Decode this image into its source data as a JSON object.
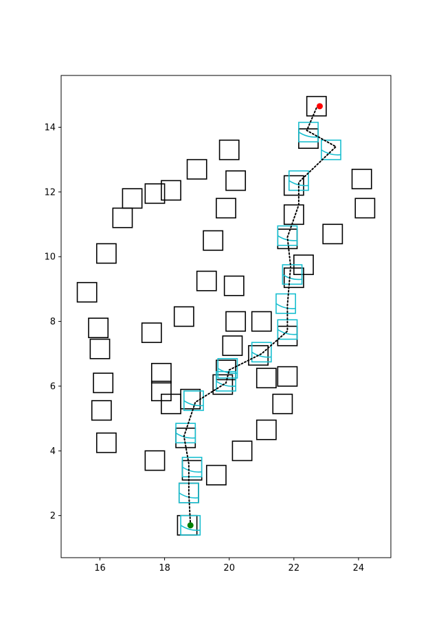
{
  "chart_data": {
    "type": "scatter",
    "title": "",
    "xlabel": "",
    "ylabel": "",
    "xlim": [
      14.8,
      25.0
    ],
    "ylim": [
      0.7,
      15.6
    ],
    "xticks": [
      16,
      18,
      20,
      22,
      24
    ],
    "yticks": [
      2,
      4,
      6,
      8,
      10,
      12,
      14
    ],
    "xtick_labels": [
      "16",
      "18",
      "20",
      "22",
      "24"
    ],
    "ytick_labels": [
      "2",
      "4",
      "6",
      "8",
      "10",
      "12",
      "14"
    ],
    "grid": false,
    "obstacle_half_size": 0.3,
    "obstacle_color": "#000000",
    "path_box_color": "#17becf",
    "path_line_color": "#000000",
    "start_color": "#008000",
    "goal_color": "#ff0000",
    "obstacles": [
      [
        22.7,
        14.65
      ],
      [
        22.45,
        13.65
      ],
      [
        20.0,
        13.3
      ],
      [
        19.0,
        12.7
      ],
      [
        20.2,
        12.35
      ],
      [
        24.1,
        12.4
      ],
      [
        22.0,
        12.2
      ],
      [
        18.2,
        12.05
      ],
      [
        17.7,
        11.95
      ],
      [
        17.0,
        11.8
      ],
      [
        24.2,
        11.5
      ],
      [
        19.9,
        11.5
      ],
      [
        22.0,
        11.3
      ],
      [
        16.7,
        11.2
      ],
      [
        23.2,
        10.7
      ],
      [
        21.8,
        10.55
      ],
      [
        19.5,
        10.5
      ],
      [
        16.2,
        10.1
      ],
      [
        22.3,
        9.75
      ],
      [
        22.0,
        9.35
      ],
      [
        19.3,
        9.25
      ],
      [
        20.15,
        9.1
      ],
      [
        15.6,
        8.9
      ],
      [
        18.6,
        8.15
      ],
      [
        20.2,
        8.0
      ],
      [
        21.0,
        8.0
      ],
      [
        15.95,
        7.8
      ],
      [
        17.6,
        7.65
      ],
      [
        21.8,
        7.55
      ],
      [
        16.0,
        7.15
      ],
      [
        20.1,
        7.25
      ],
      [
        20.9,
        6.95
      ],
      [
        19.9,
        6.5
      ],
      [
        17.9,
        6.4
      ],
      [
        21.15,
        6.25
      ],
      [
        21.8,
        6.3
      ],
      [
        16.1,
        6.1
      ],
      [
        19.8,
        6.05
      ],
      [
        17.9,
        5.85
      ],
      [
        21.65,
        5.45
      ],
      [
        18.2,
        5.45
      ],
      [
        18.8,
        5.6
      ],
      [
        16.05,
        5.25
      ],
      [
        21.15,
        4.65
      ],
      [
        18.65,
        4.4
      ],
      [
        16.2,
        4.25
      ],
      [
        20.4,
        4.0
      ],
      [
        17.7,
        3.7
      ],
      [
        18.85,
        3.4
      ],
      [
        19.6,
        3.25
      ],
      [
        18.75,
        2.7
      ],
      [
        18.7,
        1.7
      ]
    ],
    "path_boxes": [
      [
        18.8,
        1.7
      ],
      [
        18.75,
        2.7
      ],
      [
        18.85,
        3.5
      ],
      [
        18.65,
        4.55
      ],
      [
        18.9,
        5.55
      ],
      [
        19.9,
        6.15
      ],
      [
        19.95,
        6.55
      ],
      [
        21.0,
        7.05
      ],
      [
        21.8,
        7.75
      ],
      [
        21.75,
        8.55
      ],
      [
        21.95,
        9.45
      ],
      [
        21.8,
        10.65
      ],
      [
        22.15,
        12.35
      ],
      [
        23.15,
        13.3
      ],
      [
        22.45,
        13.85
      ]
    ],
    "path": [
      [
        18.8,
        1.7
      ],
      [
        18.75,
        2.7
      ],
      [
        18.75,
        3.6
      ],
      [
        18.6,
        4.45
      ],
      [
        18.95,
        5.5
      ],
      [
        19.9,
        6.1
      ],
      [
        20.0,
        6.5
      ],
      [
        21.0,
        7.0
      ],
      [
        21.8,
        7.7
      ],
      [
        21.8,
        8.5
      ],
      [
        21.9,
        9.7
      ],
      [
        21.8,
        10.6
      ],
      [
        22.15,
        11.6
      ],
      [
        22.15,
        12.3
      ],
      [
        23.3,
        13.4
      ],
      [
        22.4,
        13.9
      ],
      [
        22.7,
        14.6
      ]
    ],
    "start": [
      18.8,
      1.7
    ],
    "goal": [
      22.8,
      14.65
    ]
  }
}
